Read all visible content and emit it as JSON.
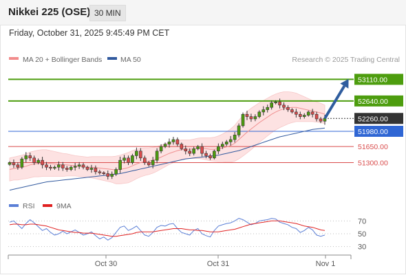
{
  "header": {
    "title": "Nikkei 225 (OSE)",
    "timeframe": "30 MIN"
  },
  "timestamp": "Friday, October 31, 2025 9:45:49 PM CET",
  "colors": {
    "green": "#4d9d0e",
    "blue": "#2f66d4",
    "red": "#d94b4b",
    "dark": "#333333",
    "arrow": "#2f5d9e",
    "ma50": "#31599e"
  },
  "chart_data": [
    {
      "type": "candlestick",
      "title": "",
      "legend": [
        {
          "label": "MA 20 + Bollinger Bands",
          "color": "#f28c8c"
        },
        {
          "label": "MA 50",
          "color": "#31599e"
        }
      ],
      "credit": "Research © 2025 Trading Central",
      "ylim": [
        50500,
        53400
      ],
      "levels": [
        {
          "value": 53110,
          "label": "53110.00",
          "color": "#4d9d0e",
          "style": "box"
        },
        {
          "value": 52640,
          "label": "52640.00",
          "color": "#4d9d0e",
          "style": "box"
        },
        {
          "value": 52260,
          "label": "52260.00",
          "color": "#333333",
          "style": "box-dotted"
        },
        {
          "value": 51980,
          "label": "51980.00",
          "color": "#2f66d4",
          "style": "box"
        },
        {
          "value": 51650,
          "label": "51650.00",
          "color": "#d94b4b",
          "style": "text"
        },
        {
          "value": 51300,
          "label": "51300.00",
          "color": "#d94b4b",
          "style": "text"
        }
      ],
      "arrow": {
        "from": 52260,
        "to": 53110
      },
      "x_ticks": [
        "Oct 30",
        "Oct 31",
        "Nov 1"
      ],
      "close": [
        51300,
        51250,
        51200,
        51380,
        51450,
        51400,
        51300,
        51350,
        51250,
        51200,
        51180,
        51200,
        51250,
        51180,
        51150,
        51200,
        51220,
        51250,
        51200,
        51150,
        51180,
        51100,
        51080,
        51060,
        51000,
        51050,
        51150,
        51350,
        51400,
        51300,
        51450,
        51550,
        51400,
        51300,
        51250,
        51350,
        51550,
        51650,
        51700,
        51750,
        51800,
        51700,
        51600,
        51550,
        51500,
        51600,
        51650,
        51500,
        51450,
        51400,
        51550,
        51650,
        51700,
        51750,
        51800,
        51900,
        52100,
        52350,
        52300,
        52250,
        52300,
        52400,
        52450,
        52500,
        52600,
        52620,
        52550,
        52500,
        52450,
        52400,
        52350,
        52300,
        52330,
        52400,
        52350,
        52250,
        52200,
        52260
      ],
      "ma20": [
        51150,
        51170,
        51180,
        51200,
        51220,
        51250,
        51270,
        51280,
        51290,
        51290,
        51280,
        51270,
        51260,
        51250,
        51250,
        51240,
        51230,
        51220,
        51210,
        51200,
        51200,
        51190,
        51180,
        51170,
        51160,
        51150,
        51140,
        51150,
        51170,
        51190,
        51230,
        51270,
        51300,
        51320,
        51330,
        51350,
        51380,
        51420,
        51460,
        51500,
        51530,
        51560,
        51580,
        51590,
        51590,
        51600,
        51610,
        51610,
        51600,
        51590,
        51590,
        51600,
        51620,
        51640,
        51670,
        51720,
        51800,
        51880,
        51960,
        52030,
        52100,
        52170,
        52230,
        52290,
        52350,
        52400,
        52440,
        52470,
        52490,
        52500,
        52500,
        52480,
        52460,
        52440,
        52420,
        52400,
        52380,
        52350
      ],
      "ma50": [
        50700,
        50720,
        50740,
        50760,
        50780,
        50800,
        50820,
        50840,
        50860,
        50880,
        50890,
        50900,
        50910,
        50920,
        50930,
        50940,
        50950,
        50960,
        50970,
        50980,
        50990,
        51000,
        51010,
        51020,
        51030,
        51040,
        51050,
        51060,
        51080,
        51100,
        51120,
        51140,
        51160,
        51180,
        51200,
        51220,
        51240,
        51260,
        51280,
        51300,
        51320,
        51340,
        51360,
        51380,
        51390,
        51400,
        51410,
        51420,
        51430,
        51440,
        51450,
        51460,
        51480,
        51500,
        51520,
        51540,
        51560,
        51590,
        51620,
        51650,
        51680,
        51710,
        51740,
        51770,
        51800,
        51830,
        51860,
        51880,
        51900,
        51920,
        51940,
        51960,
        51980,
        52000,
        52020,
        52030,
        52040,
        52050
      ],
      "band_width": [
        250,
        250,
        260,
        260,
        270,
        280,
        280,
        290,
        290,
        290,
        280,
        270,
        260,
        250,
        240,
        230,
        220,
        220,
        220,
        220,
        230,
        240,
        250,
        260,
        270,
        280,
        300,
        310,
        320,
        330,
        330,
        320,
        310,
        300,
        290,
        280,
        270,
        260,
        250,
        240,
        230,
        220,
        210,
        200,
        200,
        210,
        220,
        230,
        240,
        250,
        260,
        280,
        300,
        330,
        360,
        390,
        420,
        440,
        450,
        450,
        440,
        430,
        420,
        410,
        400,
        390,
        380,
        370,
        350,
        330,
        310,
        290,
        270,
        250,
        230,
        220,
        210,
        200
      ]
    },
    {
      "type": "line",
      "title": "",
      "legend": [
        {
          "label": "RSI",
          "color": "#5b7fd6"
        },
        {
          "label": "9MA",
          "color": "#e02020"
        }
      ],
      "ylim": [
        20,
        80
      ],
      "y_ticks": [
        "70",
        "50",
        "30"
      ],
      "rsi": [
        68,
        70,
        64,
        58,
        66,
        72,
        67,
        61,
        55,
        58,
        52,
        48,
        50,
        54,
        50,
        53,
        56,
        52,
        48,
        50,
        53,
        47,
        42,
        45,
        40,
        44,
        52,
        60,
        62,
        55,
        58,
        62,
        55,
        48,
        46,
        52,
        60,
        63,
        62,
        65,
        66,
        58,
        52,
        50,
        48,
        55,
        58,
        50,
        47,
        45,
        55,
        62,
        64,
        66,
        67,
        70,
        74,
        72,
        68,
        64,
        66,
        70,
        71,
        72,
        74,
        73,
        68,
        66,
        64,
        60,
        58,
        52,
        55,
        60,
        56,
        48,
        46,
        48
      ],
      "rsi_ma": [
        64,
        65,
        65,
        64,
        64,
        65,
        65,
        64,
        63,
        62,
        60,
        58,
        56,
        55,
        54,
        53,
        52,
        52,
        51,
        51,
        51,
        50,
        49,
        48,
        47,
        46,
        46,
        47,
        48,
        49,
        50,
        52,
        53,
        53,
        53,
        53,
        54,
        55,
        56,
        57,
        58,
        58,
        58,
        57,
        56,
        56,
        55,
        55,
        54,
        53,
        53,
        53,
        54,
        55,
        56,
        57,
        59,
        61,
        63,
        65,
        66,
        67,
        68,
        69,
        70,
        70,
        70,
        69,
        68,
        67,
        66,
        64,
        62,
        61,
        60,
        58,
        56,
        55
      ]
    }
  ]
}
